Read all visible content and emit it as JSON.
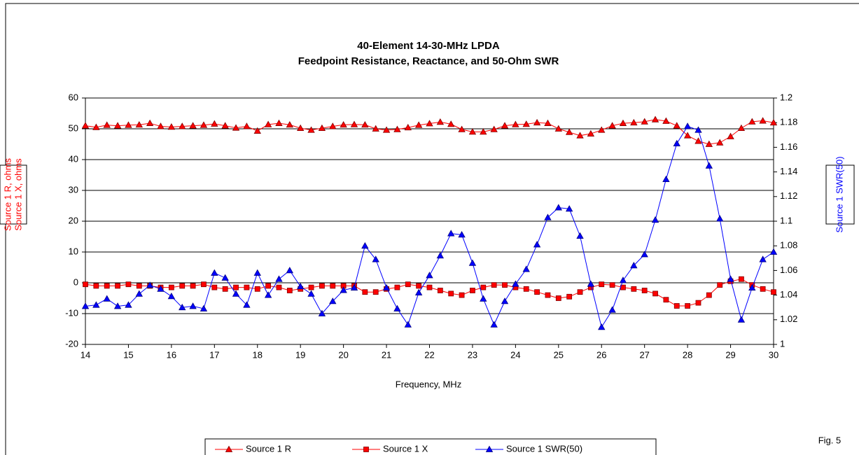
{
  "chart_data": {
    "type": "line",
    "title": "40-Element 14-30-MHz LPDA",
    "subtitle": "Feedpoint Resistance, Reactance, and 50-Ohm SWR",
    "xlabel": "Frequency, MHz",
    "ylabel": [
      "Source 1 R, ohms",
      "Source 1 X, ohms"
    ],
    "y2label": "Source 1 SWR(50)",
    "annotation": "Fig. 5",
    "x": [
      14,
      14.25,
      14.5,
      14.75,
      15,
      15.25,
      15.5,
      15.75,
      16,
      16.25,
      16.5,
      16.75,
      17,
      17.25,
      17.5,
      17.75,
      18,
      18.25,
      18.5,
      18.75,
      19,
      19.25,
      19.5,
      19.75,
      20,
      20.25,
      20.5,
      20.75,
      21,
      21.25,
      21.5,
      21.75,
      22,
      22.25,
      22.5,
      22.75,
      23,
      23.25,
      23.5,
      23.75,
      24,
      24.25,
      24.5,
      24.75,
      25,
      25.25,
      25.5,
      25.75,
      26,
      26.25,
      26.5,
      26.75,
      27,
      27.25,
      27.5,
      27.75,
      28,
      28.25,
      28.5,
      28.75,
      29,
      29.25,
      29.5,
      29.75,
      30
    ],
    "series": [
      {
        "name": "Source 1 R",
        "color": "#ff0000",
        "edge": "#800000",
        "marker": "triangle",
        "values": [
          51,
          50.5,
          51.2,
          51,
          51.2,
          51.3,
          51.8,
          50.8,
          50.6,
          50.8,
          51,
          51.2,
          51.6,
          51,
          50.3,
          50.8,
          49.3,
          51.4,
          51.8,
          51.3,
          50.2,
          49.6,
          50.2,
          50.8,
          51.3,
          51.4,
          51.3,
          50,
          49.6,
          49.8,
          50.4,
          51.2,
          51.7,
          52.2,
          51.5,
          49.8,
          49,
          49,
          49.8,
          51,
          51.4,
          51.5,
          52,
          51.8,
          50,
          48.9,
          47.8,
          48.4,
          49.6,
          51,
          51.8,
          52,
          52.3,
          53,
          52.5,
          51,
          47.8,
          46,
          45,
          45.5,
          47.5,
          50.2,
          52.3,
          52.6,
          52
        ]
      },
      {
        "name": "Source 1 X",
        "color": "#ff0000",
        "edge": "#800000",
        "marker": "square",
        "values": [
          -0.5,
          -1,
          -1,
          -1,
          -0.5,
          -1,
          -1,
          -1.5,
          -1.5,
          -1,
          -1,
          -0.5,
          -1.5,
          -2,
          -1.5,
          -1.5,
          -2,
          -1,
          -1.5,
          -2.5,
          -2,
          -1.5,
          -1,
          -1,
          -1,
          -1,
          -3,
          -3,
          -2,
          -1.5,
          -0.5,
          -1,
          -1.5,
          -2.5,
          -3.5,
          -4,
          -2.5,
          -1.5,
          -0.7,
          -0.7,
          -1.5,
          -2,
          -3,
          -4,
          -5,
          -4.5,
          -3,
          -1.5,
          -0.5,
          -0.7,
          -1.5,
          -2,
          -2.5,
          -3.5,
          -5.5,
          -7.5,
          -7.5,
          -6.5,
          -4,
          -0.7,
          0.5,
          1.2,
          -0.7,
          -2,
          -3
        ]
      },
      {
        "name": "Source 1 SWR(50)",
        "color": "#0000ff",
        "edge": "#000080",
        "marker": "triangle",
        "axis": "y2",
        "values": [
          1.031,
          1.032,
          1.037,
          1.031,
          1.032,
          1.041,
          1.048,
          1.045,
          1.039,
          1.03,
          1.031,
          1.029,
          1.058,
          1.054,
          1.041,
          1.032,
          1.058,
          1.04,
          1.053,
          1.06,
          1.047,
          1.041,
          1.025,
          1.035,
          1.044,
          1.046,
          1.08,
          1.069,
          1.046,
          1.029,
          1.016,
          1.042,
          1.056,
          1.072,
          1.09,
          1.089,
          1.066,
          1.037,
          1.016,
          1.035,
          1.049,
          1.061,
          1.081,
          1.103,
          1.111,
          1.11,
          1.088,
          1.049,
          1.014,
          1.028,
          1.052,
          1.064,
          1.073,
          1.101,
          1.134,
          1.163,
          1.177,
          1.174,
          1.145,
          1.102,
          1.053,
          1.02,
          1.046,
          1.069,
          1.075
        ]
      }
    ],
    "xlim": [
      14,
      30
    ],
    "xticks": [
      14,
      15,
      16,
      17,
      18,
      19,
      20,
      21,
      22,
      23,
      24,
      25,
      26,
      27,
      28,
      29,
      30
    ],
    "ylim": [
      -20,
      60
    ],
    "yticks": [
      -20,
      -10,
      0,
      10,
      20,
      30,
      40,
      50,
      60
    ],
    "y2lim": [
      1,
      1.2
    ],
    "y2ticks": [
      1,
      1.02,
      1.04,
      1.06,
      1.08,
      1.1,
      1.12,
      1.14,
      1.16,
      1.18,
      1.2
    ],
    "grid": true,
    "legend": "bottom"
  }
}
